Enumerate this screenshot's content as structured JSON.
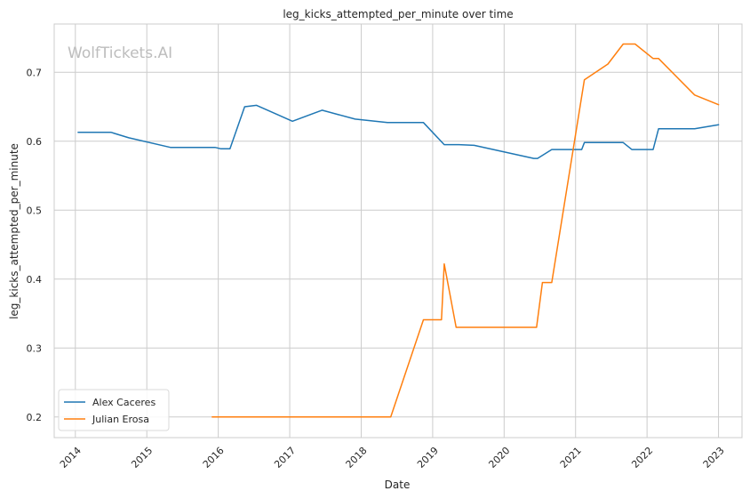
{
  "chart_data": {
    "type": "line",
    "title": "leg_kicks_attempted_per_minute over time",
    "xlabel": "Date",
    "ylabel": "leg_kicks_attempted_per_minute",
    "watermark": "WolfTickets.AI",
    "x_ticks": [
      "2014",
      "2015",
      "2016",
      "2017",
      "2018",
      "2019",
      "2020",
      "2021",
      "2022",
      "2023"
    ],
    "y_ticks": [
      "0.2",
      "0.3",
      "0.4",
      "0.5",
      "0.6",
      "0.7"
    ],
    "xlim": [
      "2013-09-15",
      "2023-05-01"
    ],
    "ylim": [
      0.17,
      0.77
    ],
    "grid": true,
    "legend_position": "lower-left",
    "series": [
      {
        "name": "Alex Caceres",
        "color": "#1f77b4",
        "points": [
          [
            "2014-01-15",
            0.613
          ],
          [
            "2014-07-01",
            0.613
          ],
          [
            "2014-10-01",
            0.605
          ],
          [
            "2015-05-01",
            0.591
          ],
          [
            "2015-12-15",
            0.591
          ],
          [
            "2016-01-15",
            0.589
          ],
          [
            "2016-03-01",
            0.589
          ],
          [
            "2016-05-15",
            0.65
          ],
          [
            "2016-07-15",
            0.652
          ],
          [
            "2017-01-15",
            0.629
          ],
          [
            "2017-06-15",
            0.645
          ],
          [
            "2017-12-01",
            0.632
          ],
          [
            "2018-05-15",
            0.627
          ],
          [
            "2018-11-15",
            0.627
          ],
          [
            "2019-03-01",
            0.595
          ],
          [
            "2019-05-15",
            0.595
          ],
          [
            "2019-08-01",
            0.594
          ],
          [
            "2020-06-01",
            0.575
          ],
          [
            "2020-06-20",
            0.575
          ],
          [
            "2020-09-01",
            0.588
          ],
          [
            "2021-02-01",
            0.588
          ],
          [
            "2021-02-15",
            0.598
          ],
          [
            "2021-09-01",
            0.598
          ],
          [
            "2021-10-15",
            0.588
          ],
          [
            "2022-02-01",
            0.588
          ],
          [
            "2022-03-01",
            0.618
          ],
          [
            "2022-09-01",
            0.618
          ],
          [
            "2023-01-01",
            0.624
          ]
        ]
      },
      {
        "name": "Julian Erosa",
        "color": "#ff7f0e",
        "points": [
          [
            "2015-12-01",
            0.2
          ],
          [
            "2018-06-01",
            0.2
          ],
          [
            "2018-11-15",
            0.341
          ],
          [
            "2019-02-15",
            0.341
          ],
          [
            "2019-03-01",
            0.422
          ],
          [
            "2019-05-01",
            0.33
          ],
          [
            "2020-06-15",
            0.33
          ],
          [
            "2020-07-15",
            0.395
          ],
          [
            "2020-09-01",
            0.395
          ],
          [
            "2021-02-15",
            0.689
          ],
          [
            "2021-06-15",
            0.712
          ],
          [
            "2021-09-01",
            0.741
          ],
          [
            "2021-11-01",
            0.741
          ],
          [
            "2022-02-01",
            0.72
          ],
          [
            "2022-03-01",
            0.72
          ],
          [
            "2022-09-01",
            0.667
          ],
          [
            "2023-01-01",
            0.653
          ]
        ]
      }
    ]
  }
}
